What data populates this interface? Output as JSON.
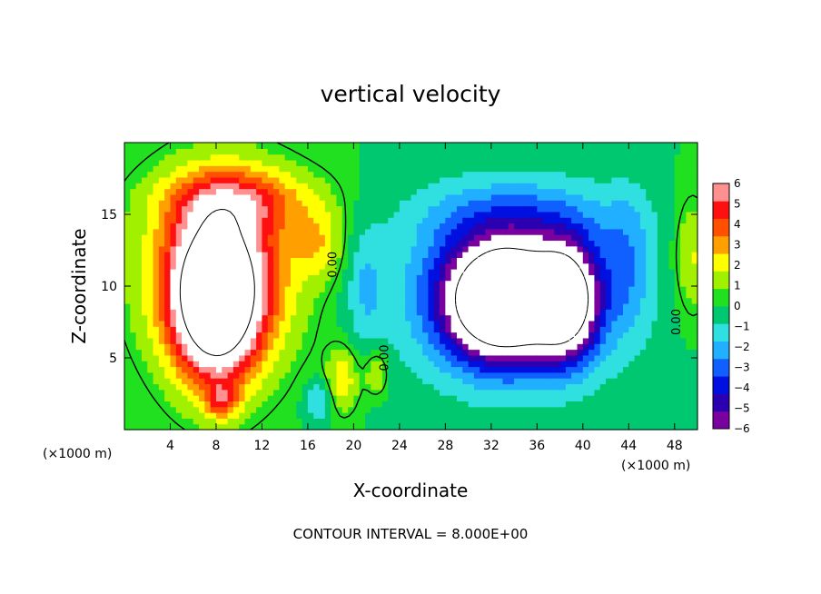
{
  "chart_data": {
    "type": "heatmap",
    "title": "vertical velocity",
    "xlabel": "X-coordinate",
    "ylabel": "Z-coordinate",
    "x_unit_left": "(×1000 m)",
    "x_unit_right": "(×1000 m)",
    "xlim": [
      0,
      50
    ],
    "ylim": [
      0,
      20
    ],
    "x_ticks": [
      4,
      8,
      12,
      16,
      20,
      24,
      28,
      32,
      36,
      40,
      44,
      48
    ],
    "y_ticks": [
      5,
      10,
      15
    ],
    "colorbar": {
      "min": -6,
      "max": 6,
      "ticks": [
        6,
        5,
        4,
        3,
        2,
        1,
        0,
        -1,
        -2,
        -3,
        -4,
        -5,
        -6
      ],
      "tick_labels": [
        "6",
        "5",
        "4",
        "3",
        "2",
        "1",
        "0",
        "−1",
        "−2",
        "−3",
        "−4",
        "−5",
        "−6"
      ],
      "colors": [
        "#7a00a0",
        "#2a00b0",
        "#0010e0",
        "#1060ff",
        "#20b0ff",
        "#30e0e0",
        "#00c870",
        "#20e020",
        "#a0f000",
        "#ffff00",
        "#ffa000",
        "#ff5000",
        "#ff1010",
        "#ff9090"
      ],
      "above_range": "#ffffff",
      "below_range": "#ffffff"
    },
    "contour_labels": [
      "0.00",
      "0.00",
      "0.00"
    ],
    "footer": "CONTOUR INTERVAL = 8.000E+00",
    "features": [
      {
        "kind": "updraft-core",
        "x": 8,
        "z": 9,
        "sx": 3.6,
        "sz": 5.2,
        "amp": 10
      },
      {
        "kind": "updraft-shell",
        "x": 8.5,
        "z": 11,
        "sx": 6.2,
        "sz": 6.5,
        "amp": 5
      },
      {
        "kind": "updraft-top",
        "x": 10,
        "z": 16,
        "sx": 6.5,
        "sz": 2.2,
        "amp": 3
      },
      {
        "kind": "updraft-lobe",
        "x": 17,
        "z": 13,
        "sx": 2.2,
        "sz": 2.5,
        "amp": 2
      },
      {
        "kind": "updraft-streak",
        "x": 19,
        "z": 3.5,
        "sx": 1.4,
        "sz": 2.2,
        "amp": 2.5
      },
      {
        "kind": "updraft-streak",
        "x": 22,
        "z": 4,
        "sx": 1.0,
        "sz": 1.5,
        "amp": 2
      },
      {
        "kind": "updraft-streak",
        "x": 8.5,
        "z": 2,
        "sx": 1.4,
        "sz": 1.2,
        "amp": 3
      },
      {
        "kind": "downdraft-core",
        "x": 33,
        "z": 9,
        "sx": 4.5,
        "sz": 3.6,
        "amp": -11
      },
      {
        "kind": "downdraft-core",
        "x": 38.5,
        "z": 9,
        "sx": 2.6,
        "sz": 3.6,
        "amp": -8
      },
      {
        "kind": "downdraft-shell",
        "x": 34,
        "z": 9.5,
        "sx": 9,
        "sz": 6,
        "amp": -4.5
      },
      {
        "kind": "downdraft-top",
        "x": 34,
        "z": 15,
        "sx": 9,
        "sz": 2.5,
        "amp": -1.5
      },
      {
        "kind": "downdraft-edge",
        "x": 21,
        "z": 10,
        "sx": 1.6,
        "sz": 4,
        "amp": -1.5
      },
      {
        "kind": "downdraft-edge",
        "x": 44,
        "z": 12,
        "sx": 2.2,
        "sz": 5,
        "amp": -1.5
      },
      {
        "kind": "updraft-edge",
        "x": 49.5,
        "z": 12,
        "sx": 1.5,
        "sz": 4,
        "amp": 2
      },
      {
        "kind": "downdraft-base",
        "x": 17,
        "z": 2,
        "sx": 1.2,
        "sz": 1.5,
        "amp": -2
      }
    ]
  }
}
